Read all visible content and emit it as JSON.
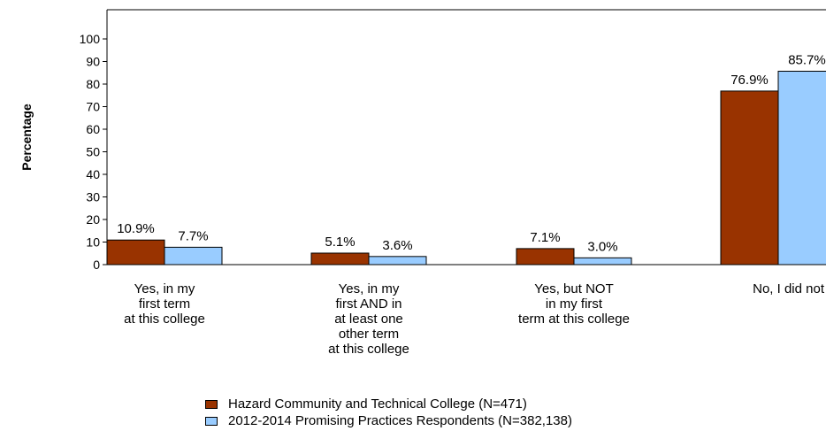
{
  "chart_data": {
    "type": "bar",
    "ylabel": "Percentage",
    "ylim": [
      0,
      100
    ],
    "yticks": [
      "0",
      "10",
      "20",
      "30",
      "40",
      "50",
      "60",
      "70",
      "80",
      "90",
      "100"
    ],
    "categories": [
      "Yes, in my\nfirst term\nat this college",
      "Yes, in my\nfirst AND in\nat least one\nother term\nat this college",
      "Yes, but NOT\nin my first\nterm at this college",
      "No, I did not"
    ],
    "series": [
      {
        "name": "Hazard Community and Technical College (N=471)",
        "color": "#993300",
        "values": [
          10.9,
          5.1,
          7.1,
          76.9
        ],
        "labels": [
          "10.9%",
          "5.1%",
          "7.1%",
          "76.9%"
        ]
      },
      {
        "name": "2012-2014 Promising Practices Respondents (N=382,138)",
        "color": "#99ccff",
        "values": [
          7.7,
          3.6,
          3.0,
          85.7
        ],
        "labels": [
          "7.7%",
          "3.6%",
          "3.0%",
          "85.7%"
        ]
      }
    ],
    "legend_position": "bottom",
    "grid": false
  }
}
